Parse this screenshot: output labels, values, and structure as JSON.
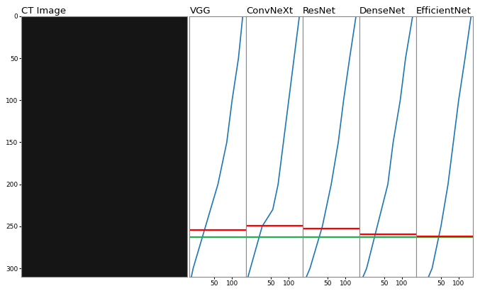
{
  "chart_data": [
    {
      "type": "image",
      "title": "CT Image",
      "ylim": [
        310,
        0
      ],
      "yticks": [
        0,
        50,
        100,
        150,
        200,
        250,
        300
      ],
      "tick_labels": "y"
    },
    {
      "type": "line",
      "title": "VGG",
      "color": "#1f77b4",
      "x": [
        130,
        118,
        100,
        85,
        60,
        25,
        -10,
        -15
      ],
      "y": [
        0,
        50,
        100,
        150,
        200,
        250,
        300,
        310
      ],
      "xlim": [
        -20,
        140
      ],
      "xticks": [
        50,
        100
      ],
      "ylim": [
        310,
        0
      ],
      "tick_labels": "x",
      "lines": [
        {
          "value": 254,
          "color": "#ff0000"
        },
        {
          "value": 263,
          "color": "#22b14c"
        }
      ]
    },
    {
      "type": "line",
      "title": "ConvNeXt",
      "color": "#1f77b4",
      "x": [
        130,
        115,
        100,
        85,
        70,
        55,
        25,
        5,
        -15
      ],
      "y": [
        0,
        50,
        100,
        150,
        200,
        230,
        250,
        280,
        310
      ],
      "xlim": [
        -20,
        140
      ],
      "xticks": [
        50,
        100
      ],
      "ylim": [
        310,
        0
      ],
      "tick_labels": "x",
      "lines": [
        {
          "value": 249,
          "color": "#ff0000"
        },
        {
          "value": 263,
          "color": "#22b14c"
        }
      ]
    },
    {
      "type": "line",
      "title": "ResNet",
      "color": "#1f77b4",
      "x": [
        130,
        112,
        95,
        80,
        60,
        35,
        0,
        -10
      ],
      "y": [
        0,
        50,
        100,
        150,
        200,
        250,
        300,
        310
      ],
      "xlim": [
        -20,
        140
      ],
      "xticks": [
        50,
        100
      ],
      "ylim": [
        310,
        0
      ],
      "tick_labels": "x",
      "lines": [
        {
          "value": 253,
          "color": "#ff0000"
        },
        {
          "value": 263,
          "color": "#22b14c"
        }
      ]
    },
    {
      "type": "line",
      "title": "DenseNet",
      "color": "#1f77b4",
      "x": [
        130,
        110,
        95,
        75,
        60,
        30,
        0,
        -10
      ],
      "y": [
        0,
        50,
        100,
        150,
        200,
        250,
        300,
        310
      ],
      "xlim": [
        -20,
        140
      ],
      "xticks": [
        50,
        100
      ],
      "ylim": [
        310,
        0
      ],
      "tick_labels": "x",
      "lines": [
        {
          "value": 259,
          "color": "#ff0000"
        },
        {
          "value": 263,
          "color": "#22b14c"
        }
      ]
    },
    {
      "type": "line",
      "title": "EfficientNet",
      "color": "#1f77b4",
      "x": [
        135,
        118,
        100,
        85,
        70,
        50,
        25,
        15
      ],
      "y": [
        0,
        50,
        100,
        150,
        200,
        250,
        300,
        310
      ],
      "xlim": [
        -20,
        140
      ],
      "xticks": [
        50,
        100
      ],
      "ylim": [
        310,
        0
      ],
      "tick_labels": "x",
      "lines": [
        {
          "value": 263,
          "color": "#22b14c"
        },
        {
          "value": 262,
          "color": "#ff0000"
        }
      ]
    }
  ]
}
